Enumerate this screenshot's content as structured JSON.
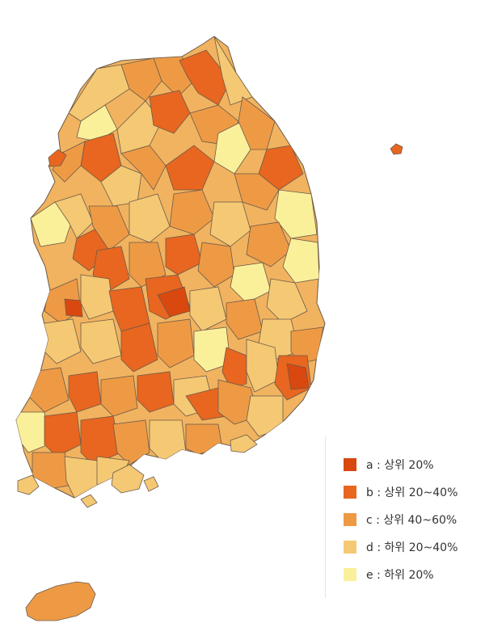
{
  "legend": {
    "items": [
      {
        "key": "a",
        "label": "a : 상위 20%",
        "color": "#d9480f"
      },
      {
        "key": "b",
        "label": "b : 상위 20~40%",
        "color": "#e8661f"
      },
      {
        "key": "c",
        "label": "c : 상위 40~60%",
        "color": "#ee9a45"
      },
      {
        "key": "d",
        "label": "d : 하위 20~40%",
        "color": "#f5c874"
      },
      {
        "key": "e",
        "label": "e : 하위 20%",
        "color": "#fbf09a"
      }
    ]
  }
}
